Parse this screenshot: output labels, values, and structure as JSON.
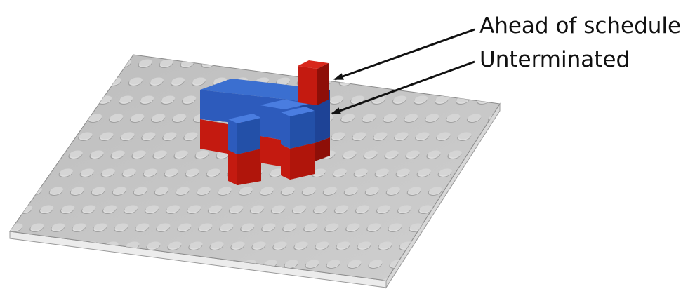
{
  "annotations": {
    "ahead_of_schedule": "Ahead of schedule",
    "unterminated": "Unterminated"
  },
  "colors": {
    "baseplate_top": "#c8c8c8",
    "baseplate_side": "#e6e6e6",
    "stud": "#dcdcdc",
    "blue": "#2f62c4",
    "red": "#c41a10",
    "arrow": "#111111"
  }
}
